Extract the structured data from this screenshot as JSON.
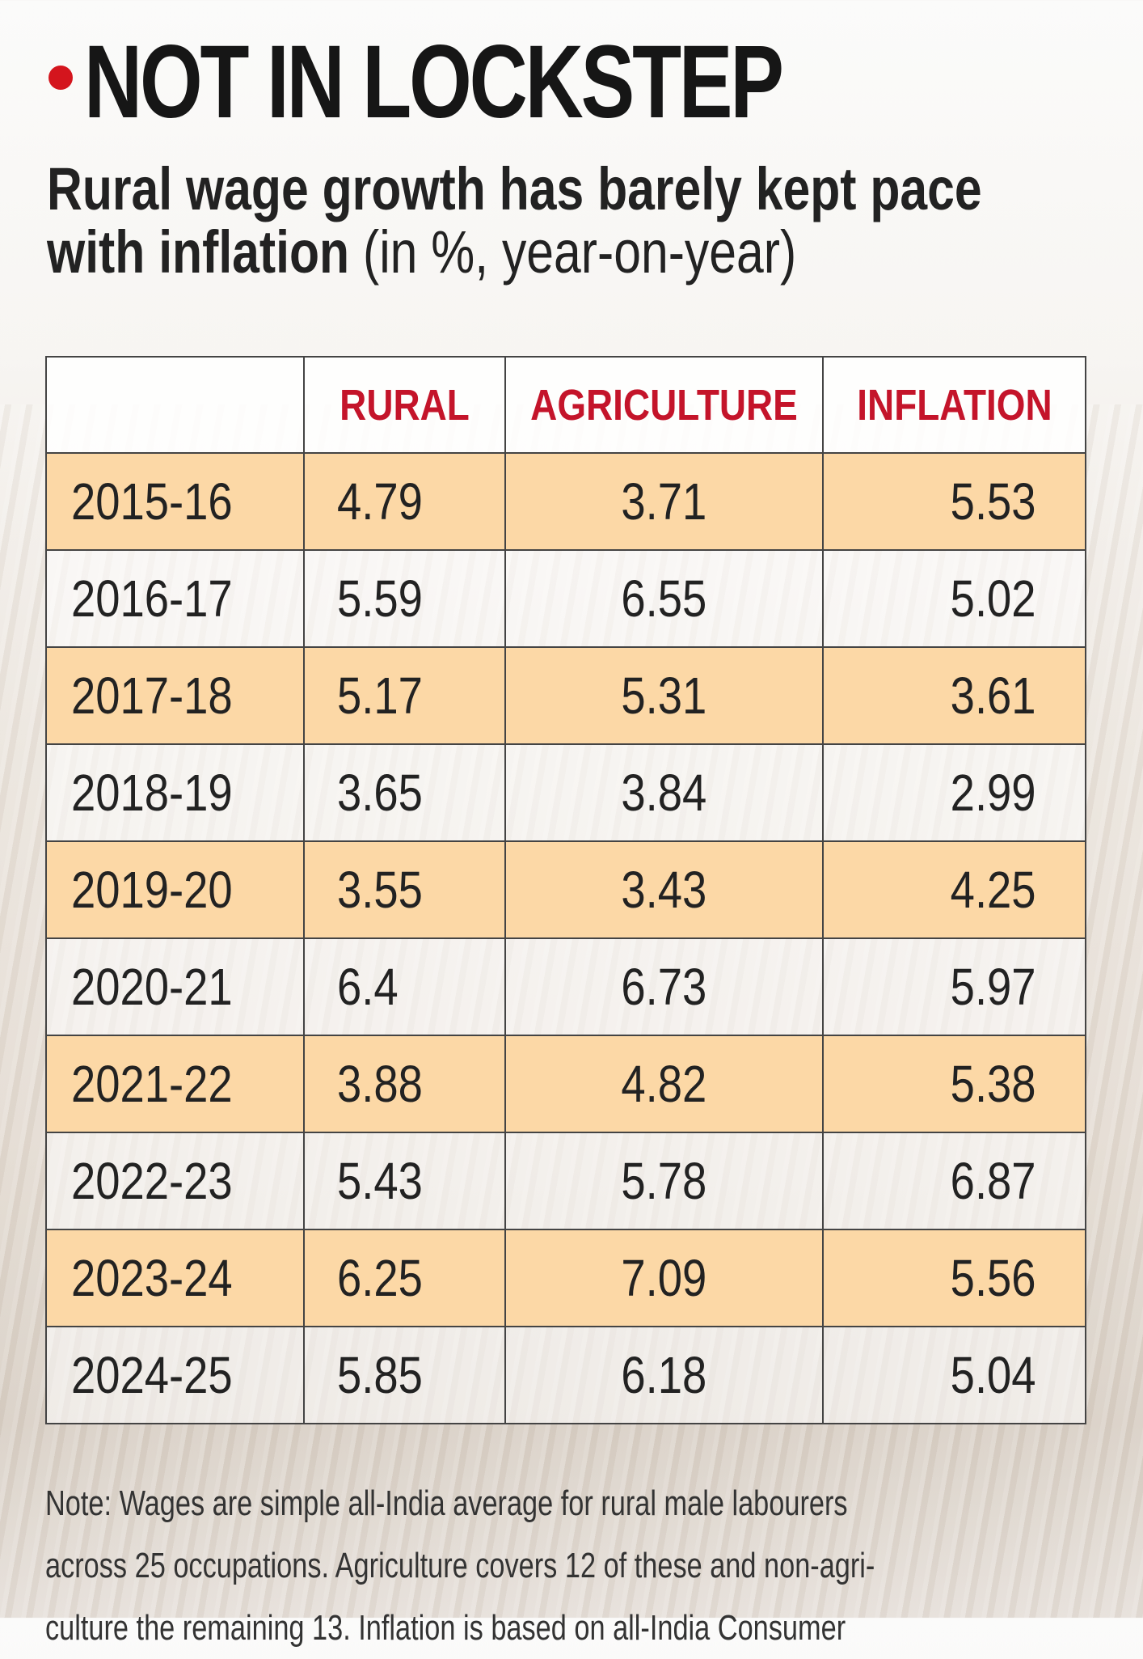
{
  "title": "NOT IN LOCKSTEP",
  "subtitle_bold_1": "Rural wage growth has barely kept pace",
  "subtitle_bold_2": "with inflation",
  "subtitle_regular": " (in %, year-on-year)",
  "colors": {
    "accent_red": "#d4151d",
    "row_highlight": "#fcd8a6"
  },
  "table": {
    "headers": [
      "",
      "RURAL",
      "AGRICULTURE",
      "INFLATION"
    ],
    "rows": [
      {
        "year": "2015-16",
        "rural": "4.79",
        "agriculture": "3.71",
        "inflation": "5.53"
      },
      {
        "year": "2016-17",
        "rural": "5.59",
        "agriculture": "6.55",
        "inflation": "5.02"
      },
      {
        "year": "2017-18",
        "rural": "5.17",
        "agriculture": "5.31",
        "inflation": "3.61"
      },
      {
        "year": "2018-19",
        "rural": "3.65",
        "agriculture": "3.84",
        "inflation": "2.99"
      },
      {
        "year": "2019-20",
        "rural": "3.55",
        "agriculture": "3.43",
        "inflation": "4.25"
      },
      {
        "year": "2020-21",
        "rural": "6.4",
        "agriculture": "6.73",
        "inflation": "5.97"
      },
      {
        "year": "2021-22",
        "rural": "3.88",
        "agriculture": "4.82",
        "inflation": "5.38"
      },
      {
        "year": "2022-23",
        "rural": "5.43",
        "agriculture": "5.78",
        "inflation": "6.87"
      },
      {
        "year": "2023-24",
        "rural": "6.25",
        "agriculture": "7.09",
        "inflation": "5.56"
      },
      {
        "year": "2024-25",
        "rural": "5.85",
        "agriculture": "6.18",
        "inflation": "5.04"
      }
    ]
  },
  "note": [
    "Note: Wages are simple all-India average for rural male labourers",
    "across 25 occupations. Agriculture covers 12 of these and non-agri-",
    "culture the remaining 13. Inflation is based on all-India Consumer"
  ]
}
